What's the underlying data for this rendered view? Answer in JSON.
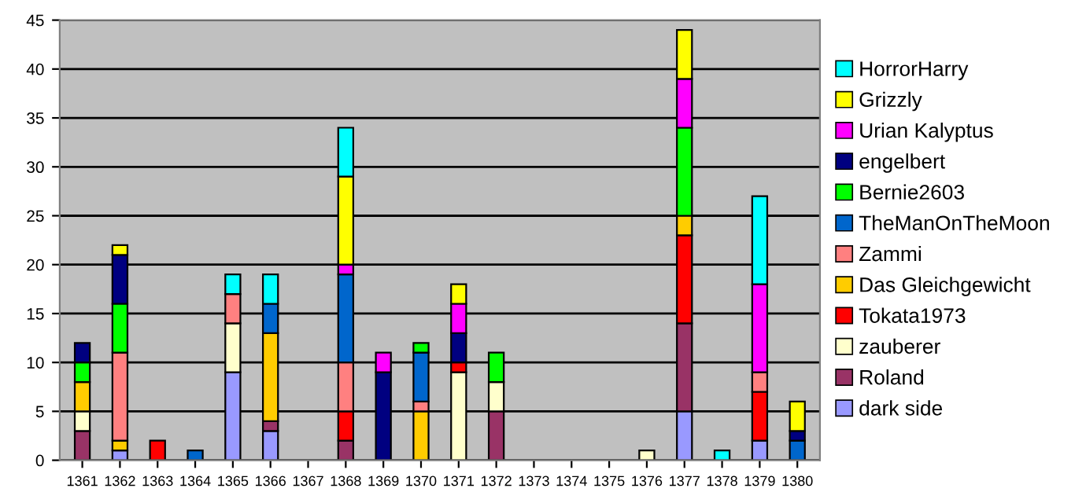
{
  "chart_data": {
    "type": "bar",
    "stacked": true,
    "categories": [
      "1361",
      "1362",
      "1363",
      "1364",
      "1365",
      "1366",
      "1367",
      "1368",
      "1369",
      "1370",
      "1371",
      "1372",
      "1373",
      "1374",
      "1375",
      "1376",
      "1377",
      "1378",
      "1379",
      "1380"
    ],
    "series": [
      {
        "name": "dark side",
        "color": "#9999ff",
        "values": [
          0,
          1,
          0,
          0,
          9,
          3,
          0,
          0,
          0,
          0,
          0,
          0,
          0,
          0,
          0,
          0,
          5,
          0,
          2,
          0
        ]
      },
      {
        "name": "Roland",
        "color": "#993366",
        "values": [
          3,
          0,
          0,
          0,
          0,
          1,
          0,
          2,
          0,
          0,
          0,
          5,
          0,
          0,
          0,
          0,
          9,
          0,
          0,
          0
        ]
      },
      {
        "name": "zauberer",
        "color": "#ffffcc",
        "values": [
          2,
          0,
          0,
          0,
          5,
          0,
          0,
          0,
          0,
          0,
          9,
          3,
          0,
          0,
          0,
          1,
          0,
          0,
          0,
          0
        ]
      },
      {
        "name": "Tokata1973",
        "color": "#ff0000",
        "values": [
          0,
          0,
          2,
          0,
          0,
          0,
          0,
          3,
          0,
          0,
          1,
          0,
          0,
          0,
          0,
          0,
          9,
          0,
          5,
          0
        ]
      },
      {
        "name": "Das Gleichgewicht",
        "color": "#ffcc00",
        "values": [
          3,
          1,
          0,
          0,
          0,
          9,
          0,
          0,
          0,
          5,
          0,
          0,
          0,
          0,
          0,
          0,
          2,
          0,
          0,
          0
        ]
      },
      {
        "name": "Zammi",
        "color": "#ff8080",
        "values": [
          0,
          9,
          0,
          0,
          3,
          0,
          0,
          5,
          0,
          1,
          0,
          0,
          0,
          0,
          0,
          0,
          0,
          0,
          2,
          0
        ]
      },
      {
        "name": "TheManOnTheMoon",
        "color": "#0066cc",
        "values": [
          0,
          0,
          0,
          1,
          0,
          3,
          0,
          9,
          0,
          5,
          0,
          0,
          0,
          0,
          0,
          0,
          0,
          0,
          0,
          2
        ]
      },
      {
        "name": "Bernie2603",
        "color": "#00ff00",
        "values": [
          2,
          5,
          0,
          0,
          0,
          0,
          0,
          0,
          0,
          1,
          0,
          3,
          0,
          0,
          0,
          0,
          9,
          0,
          0,
          0
        ]
      },
      {
        "name": "engelbert",
        "color": "#000080",
        "values": [
          2,
          5,
          0,
          0,
          0,
          0,
          0,
          0,
          9,
          0,
          3,
          0,
          0,
          0,
          0,
          0,
          0,
          0,
          0,
          1
        ]
      },
      {
        "name": "Urian Kalyptus",
        "color": "#ff00ff",
        "values": [
          0,
          0,
          0,
          0,
          0,
          0,
          0,
          1,
          2,
          0,
          3,
          0,
          0,
          0,
          0,
          0,
          5,
          0,
          9,
          0
        ]
      },
      {
        "name": "Grizzly",
        "color": "#ffff00",
        "values": [
          0,
          1,
          0,
          0,
          0,
          0,
          0,
          9,
          0,
          0,
          2,
          0,
          0,
          0,
          0,
          0,
          5,
          0,
          0,
          3
        ]
      },
      {
        "name": "HorrorHarry",
        "color": "#00ffff",
        "values": [
          0,
          0,
          0,
          0,
          2,
          3,
          0,
          5,
          0,
          0,
          0,
          0,
          0,
          0,
          0,
          0,
          0,
          1,
          9,
          0
        ]
      }
    ],
    "ylim": [
      0,
      45
    ],
    "yticks": [
      0,
      5,
      10,
      15,
      20,
      25,
      30,
      35,
      40,
      45
    ],
    "grid": "y",
    "legend": "right"
  }
}
